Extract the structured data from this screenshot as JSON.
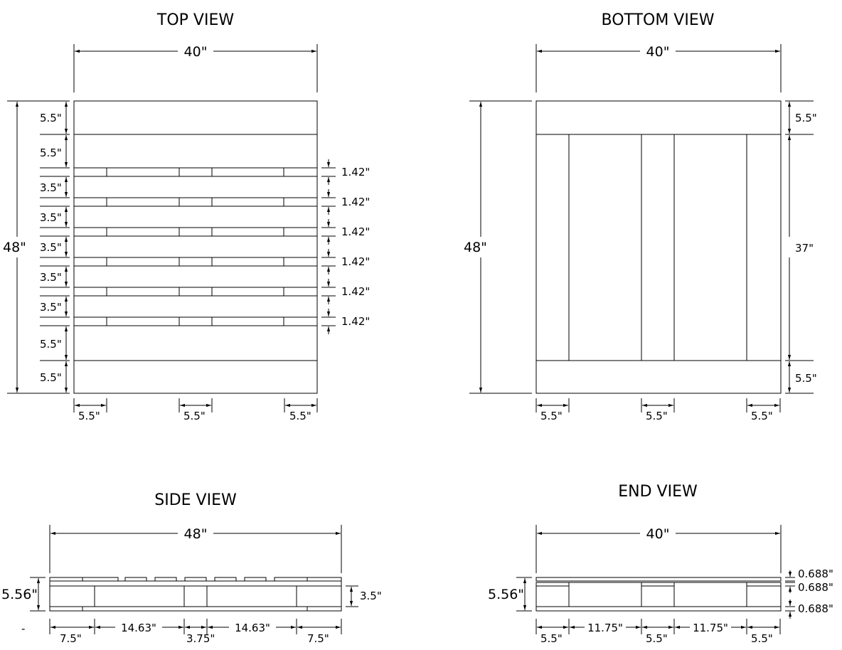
{
  "titles": {
    "top": "TOP VIEW",
    "bottom": "BOTTOM VIEW",
    "side": "SIDE VIEW",
    "end": "END VIEW"
  },
  "top_view": {
    "width": "40\"",
    "height": "48\"",
    "left_dims": [
      "5.5\"",
      "5.5\"",
      "3.5\"",
      "3.5\"",
      "3.5\"",
      "3.5\"",
      "3.5\"",
      "5.5\"",
      "5.5\""
    ],
    "gap_dims": [
      "1.42\"",
      "1.42\"",
      "1.42\"",
      "1.42\"",
      "1.42\"",
      "1.42\""
    ],
    "bottom_dims": [
      "5.5\"",
      "5.5\"",
      "5.5\""
    ]
  },
  "bottom_view": {
    "width": "40\"",
    "height": "48\"",
    "right_dims": [
      "5.5\"",
      "37\"",
      "5.5\""
    ],
    "bottom_dims": [
      "5.5\"",
      "5.5\"",
      "5.5\""
    ]
  },
  "side_view": {
    "length": "48\"",
    "height": "5.56\"",
    "block_height": "3.5\"",
    "bottom_dims": [
      "7.5\"",
      "14.63\"",
      "3.75\"",
      "14.63\"",
      "7.5\""
    ],
    "marker": "-"
  },
  "end_view": {
    "width": "40\"",
    "height": "5.56\"",
    "board_dims": [
      "0.688\"",
      "0.688\"",
      "0.688\""
    ],
    "bottom_dims": [
      "5.5\"",
      "11.75\"",
      "5.5\"",
      "11.75\"",
      "5.5\""
    ]
  }
}
